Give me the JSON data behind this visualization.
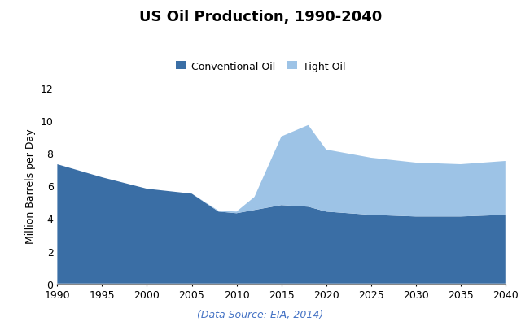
{
  "title": "US Oil Production, 1990-2040",
  "ylabel": "Million Barrels per Day",
  "data_source": "(Data Source: EIA, 2014)",
  "years": [
    1990,
    1995,
    2000,
    2005,
    2008,
    2010,
    2012,
    2015,
    2018,
    2020,
    2025,
    2030,
    2035,
    2040
  ],
  "conventional_oil": [
    7.3,
    6.5,
    5.8,
    5.5,
    4.4,
    4.3,
    4.5,
    4.8,
    4.7,
    4.4,
    4.2,
    4.1,
    4.1,
    4.2
  ],
  "tight_oil": [
    0.0,
    0.0,
    0.0,
    0.0,
    0.05,
    0.1,
    0.8,
    4.2,
    5.0,
    3.8,
    3.5,
    3.3,
    3.2,
    3.3
  ],
  "conventional_color": "#3A6EA5",
  "tight_color": "#9DC3E6",
  "ylim": [
    0,
    12
  ],
  "yticks": [
    0,
    2,
    4,
    6,
    8,
    10,
    12
  ],
  "xticks": [
    1990,
    1995,
    2000,
    2005,
    2010,
    2015,
    2020,
    2025,
    2030,
    2035,
    2040
  ],
  "title_fontsize": 13,
  "label_fontsize": 9,
  "tick_fontsize": 9,
  "datasource_fontsize": 9,
  "legend_fontsize": 9,
  "legend_labels": [
    "Conventional Oil",
    "Tight Oil"
  ],
  "datasource_color": "#4472C4"
}
